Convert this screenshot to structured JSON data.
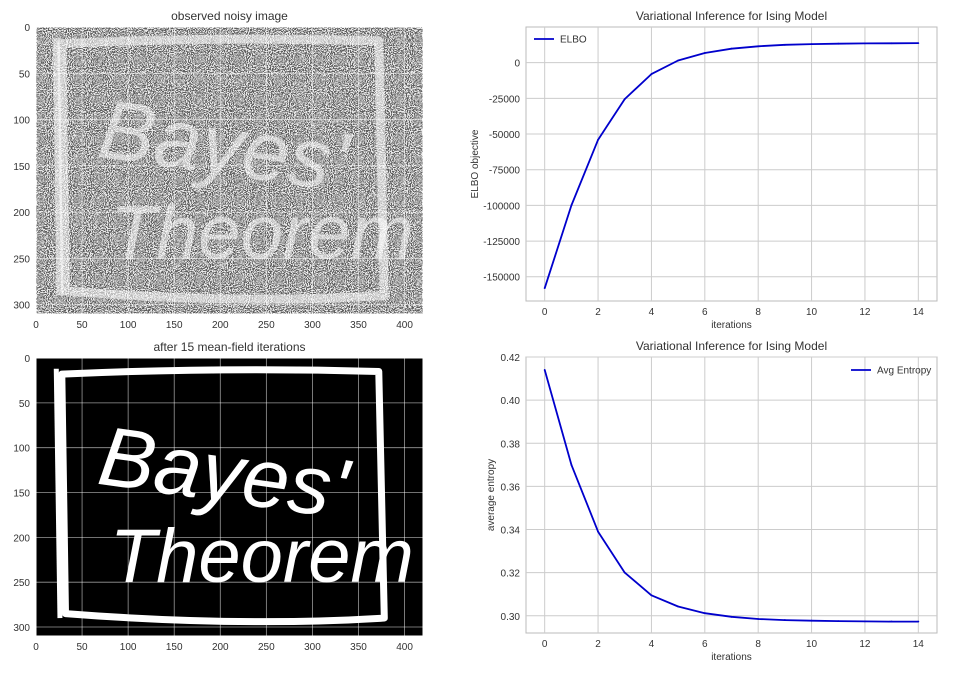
{
  "colors": {
    "line": "#0000cc",
    "grid": "#cccccc",
    "axis": "#bbbbbb",
    "text": "#333333",
    "image_bg_noisy": "#8a8a8a",
    "image_bg_clean": "#000000",
    "image_fg": "#ffffff"
  },
  "chart_data": [
    {
      "type": "image",
      "title": "observed noisy image",
      "xticks": [
        "0",
        "50",
        "100",
        "150",
        "200",
        "250",
        "300",
        "350",
        "400"
      ],
      "yticks": [
        "0",
        "50",
        "100",
        "150",
        "200",
        "250",
        "300"
      ],
      "xlim": [
        0,
        420
      ],
      "ylim": [
        310,
        0
      ],
      "image_text": [
        "Bayes'",
        "Theorem"
      ]
    },
    {
      "type": "line",
      "title": "Variational Inference for Ising Model",
      "xlabel": "iterations",
      "ylabel": "ELBO objective",
      "xlim": [
        -0.7,
        14.7
      ],
      "ylim": [
        -167000,
        25000
      ],
      "xticks": [
        "0",
        "2",
        "4",
        "6",
        "8",
        "10",
        "12",
        "14"
      ],
      "yticks": [
        "0",
        "-25000",
        "-50000",
        "-75000",
        "-100000",
        "-125000",
        "-150000"
      ],
      "legend": "top-left",
      "grid": true,
      "series": [
        {
          "name": "ELBO",
          "x": [
            0,
            1,
            2,
            3,
            4,
            5,
            6,
            7,
            8,
            9,
            10,
            11,
            12,
            13,
            14
          ],
          "y": [
            -158000,
            -100000,
            -54000,
            -25500,
            -8000,
            1500,
            6800,
            9800,
            11500,
            12500,
            13000,
            13300,
            13500,
            13600,
            13700
          ]
        }
      ]
    },
    {
      "type": "image",
      "title": "after 15 mean-field iterations",
      "xticks": [
        "0",
        "50",
        "100",
        "150",
        "200",
        "250",
        "300",
        "350",
        "400"
      ],
      "yticks": [
        "0",
        "50",
        "100",
        "150",
        "200",
        "250",
        "300"
      ],
      "xlim": [
        0,
        420
      ],
      "ylim": [
        310,
        0
      ],
      "image_text": [
        "Bayes'",
        "Theorem"
      ]
    },
    {
      "type": "line",
      "title": "Variational Inference for Ising Model",
      "xlabel": "iterations",
      "ylabel": "average entropy",
      "xlim": [
        -0.7,
        14.7
      ],
      "ylim": [
        0.292,
        0.42
      ],
      "xticks": [
        "0",
        "2",
        "4",
        "6",
        "8",
        "10",
        "12",
        "14"
      ],
      "yticks": [
        "0.30",
        "0.32",
        "0.34",
        "0.36",
        "0.38",
        "0.40",
        "0.42"
      ],
      "legend": "top-right",
      "grid": true,
      "series": [
        {
          "name": "Avg Entropy",
          "x": [
            0,
            1,
            2,
            3,
            4,
            5,
            6,
            7,
            8,
            9,
            10,
            11,
            12,
            13,
            14
          ],
          "y": [
            0.414,
            0.37,
            0.339,
            0.32,
            0.3095,
            0.3043,
            0.3012,
            0.2995,
            0.2985,
            0.298,
            0.2977,
            0.2975,
            0.2974,
            0.2973,
            0.2973
          ]
        }
      ]
    }
  ]
}
